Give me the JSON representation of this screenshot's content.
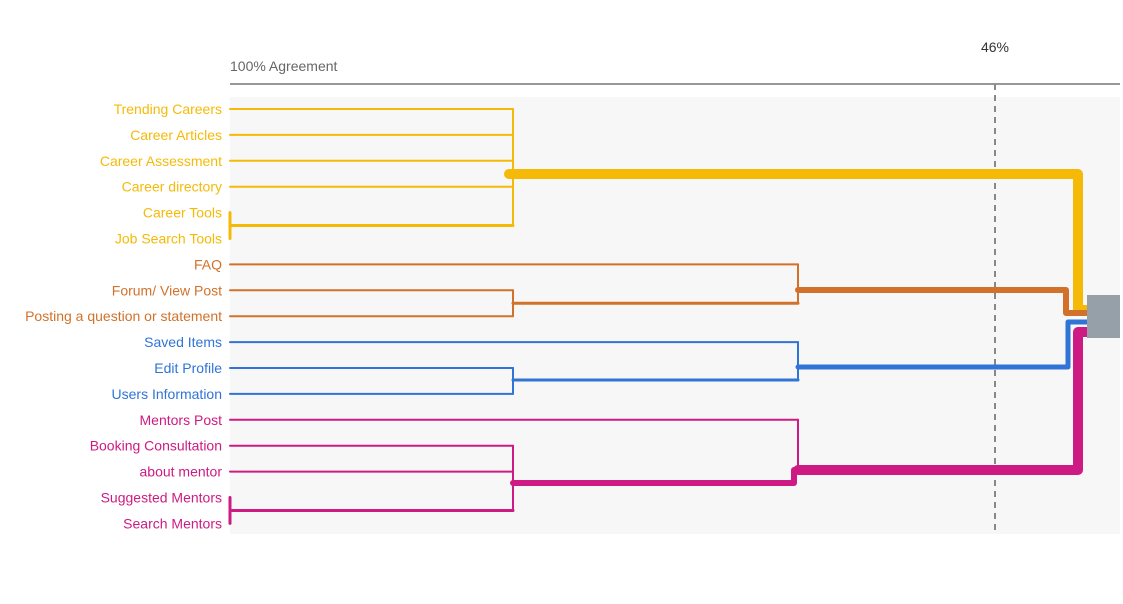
{
  "chart_data": {
    "type": "dendrogram",
    "axis_label": "100% Agreement",
    "threshold_label": "46%",
    "threshold_value": 46,
    "leaves": [
      {
        "label": "Trending Careers",
        "group": "careers"
      },
      {
        "label": "Career Articles",
        "group": "careers"
      },
      {
        "label": "Career Assessment",
        "group": "careers"
      },
      {
        "label": "Career directory",
        "group": "careers"
      },
      {
        "label": "Career Tools",
        "group": "careers"
      },
      {
        "label": "Job Search Tools",
        "group": "careers"
      },
      {
        "label": "FAQ",
        "group": "forum"
      },
      {
        "label": "Forum/ View Post",
        "group": "forum"
      },
      {
        "label": "Posting a question or statement",
        "group": "forum"
      },
      {
        "label": "Saved Items",
        "group": "profile"
      },
      {
        "label": "Edit Profile",
        "group": "profile"
      },
      {
        "label": "Users Information",
        "group": "profile"
      },
      {
        "label": "Mentors Post",
        "group": "mentors"
      },
      {
        "label": "Booking Consultation",
        "group": "mentors"
      },
      {
        "label": "about mentor",
        "group": "mentors"
      },
      {
        "label": "Suggested Mentors",
        "group": "mentors"
      },
      {
        "label": "Search Mentors",
        "group": "mentors"
      }
    ],
    "groups": [
      {
        "id": "careers",
        "color": "#F5BA07",
        "merge_agreement": 99,
        "leaf_count": 6
      },
      {
        "id": "forum",
        "color": "#D2722A",
        "merge_agreement": 66,
        "leaf_count": 3
      },
      {
        "id": "profile",
        "color": "#2F74D6",
        "merge_agreement": 66,
        "leaf_count": 3
      },
      {
        "id": "mentors",
        "color": "#CE1A83",
        "merge_agreement": 66,
        "leaf_count": 5
      }
    ],
    "root_color": "#95A0A8",
    "plot_background": "#F7F7F7"
  }
}
